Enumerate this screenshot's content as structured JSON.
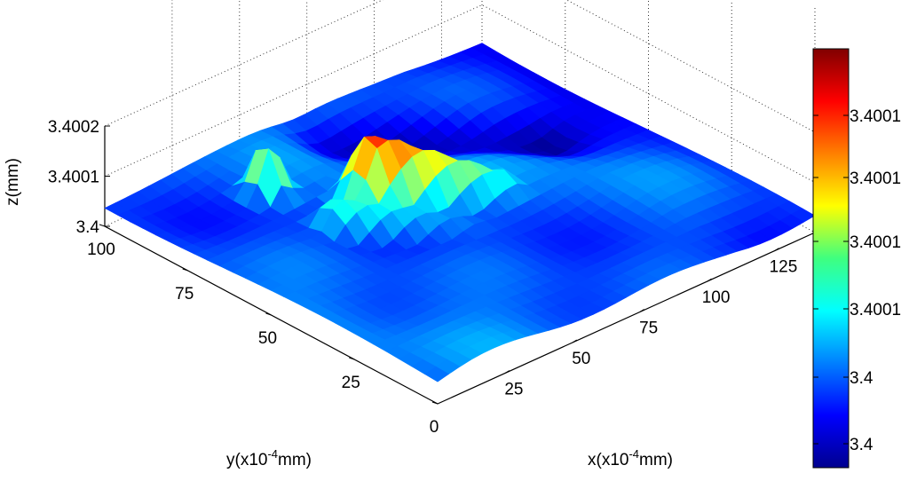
{
  "chart_data": {
    "type": "surface",
    "title": "",
    "xlabel": {
      "base": "x(x10",
      "exp": "-4",
      "unit": "mm)"
    },
    "ylabel": {
      "base": "y(x10",
      "exp": "-4",
      "unit": "mm)"
    },
    "zlabel": "z(mm)",
    "x_ticks": [
      "25",
      "50",
      "75",
      "100",
      "125"
    ],
    "x_tick_values": [
      25,
      50,
      75,
      100,
      125
    ],
    "y_ticks": [
      "0",
      "25",
      "50",
      "75",
      "100"
    ],
    "y_tick_values": [
      0,
      25,
      50,
      75,
      100
    ],
    "z_ticks": [
      "3.4",
      "3.4001",
      "3.4002"
    ],
    "z_tick_values": [
      3.4,
      3.4001,
      3.4002
    ],
    "xlim": [
      0,
      140
    ],
    "ylim": [
      0,
      100
    ],
    "zlim": [
      3.4,
      3.4002
    ],
    "colorbar_ticks": [
      "3.4001",
      "3.4001",
      "3.4001",
      "3.4001",
      "3.4",
      "3.4"
    ],
    "colormap": "jet",
    "grid": true,
    "features": [
      {
        "shape": "ridge",
        "x": [
          55,
          85
        ],
        "y": [
          50,
          64
        ],
        "peak_z": 3.40018
      },
      {
        "shape": "bump",
        "x": 38,
        "y": 82,
        "peak_z": 3.40014
      },
      {
        "shape": "ridge",
        "x": [
          40,
          72
        ],
        "y": [
          40,
          62
        ],
        "peak_z": 3.40009
      },
      {
        "shape": "trench",
        "x": [
          70,
          115
        ],
        "y": [
          62,
          88
        ],
        "peak_z": 3.40001
      }
    ]
  }
}
